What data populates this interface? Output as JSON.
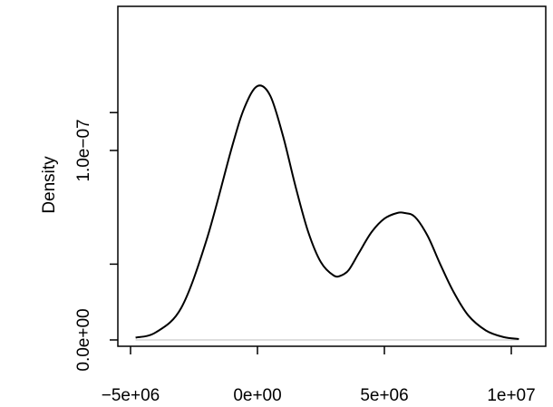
{
  "chart_data": {
    "type": "line",
    "title": "",
    "xlabel": "",
    "ylabel": "Density",
    "xlim": [
      -5000000,
      10500000
    ],
    "ylim": [
      0,
      1.35e-07
    ],
    "x_ticks": [
      {
        "value": -5000000,
        "label": "−5e+06"
      },
      {
        "value": 0,
        "label": "0e+00"
      },
      {
        "value": 5000000,
        "label": "5e+06"
      },
      {
        "value": 10000000,
        "label": "1e+07"
      }
    ],
    "y_ticks": [
      {
        "value": 0,
        "label": "0.0e+00"
      },
      {
        "value": 4e-08,
        "label": ""
      },
      {
        "value": 1e-07,
        "label": "1.0e−07"
      },
      {
        "value": 1.2e-07,
        "label": ""
      }
    ],
    "y_ticks_minor": [
      4e-08,
      1.2e-07
    ],
    "baseline": 0,
    "grid": false,
    "legend": "none",
    "colors": {
      "line": "#000000",
      "baseline": "#bebebe",
      "frame": "#000000"
    },
    "series": [
      {
        "x": [
          -4800000,
          -4000000,
          -3000000,
          -2000000,
          -1000000,
          -500000,
          0,
          500000,
          1000000,
          1500000,
          2000000,
          2500000,
          3000000,
          3300000,
          3600000,
          4000000,
          4500000,
          5000000,
          5500000,
          5800000,
          6200000,
          6700000,
          7200000,
          7700000,
          8300000,
          9000000,
          9700000,
          10300000
        ],
        "y": [
          1.2e-09,
          4e-09,
          1.7e-08,
          5.3e-08,
          1.02e-07,
          1.23e-07,
          1.34e-07,
          1.29e-07,
          1.08e-07,
          8.1e-08,
          5.7e-08,
          4.1e-08,
          3.4e-08,
          3.4e-08,
          3.7e-08,
          4.6e-08,
          5.7e-08,
          6.4e-08,
          6.7e-08,
          6.7e-08,
          6.5e-08,
          5.5e-08,
          4e-08,
          2.6e-08,
          1.3e-08,
          5e-09,
          1.5e-09,
          5e-10
        ]
      }
    ]
  }
}
